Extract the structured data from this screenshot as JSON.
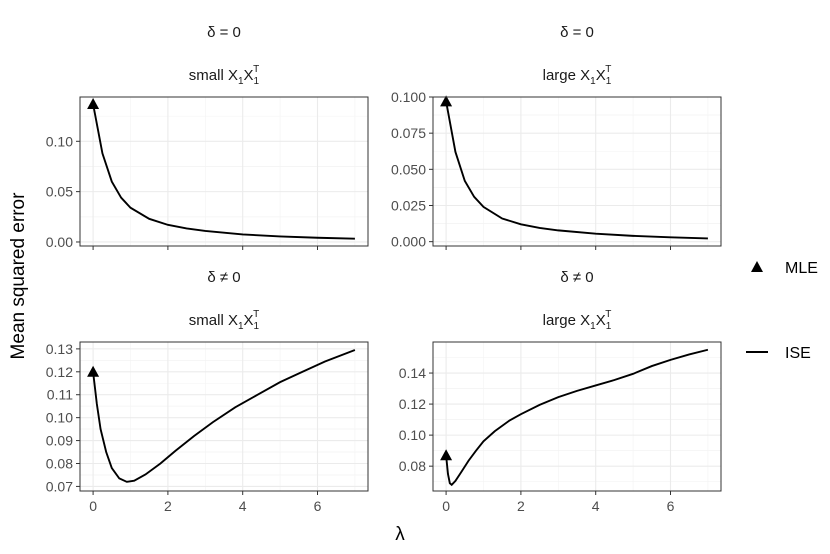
{
  "chart_data": {
    "type": "line",
    "ylabel": "Mean squared error",
    "xlabel": "λ",
    "legend": {
      "placement": "right",
      "entries": [
        {
          "label": "MLE",
          "marker": "triangle"
        },
        {
          "label": "ISE",
          "marker": "line"
        }
      ]
    },
    "grid": true,
    "panels": [
      {
        "row_label": "δ = 0",
        "subtitle_prefix": "small ",
        "xlim": [
          -0.35,
          7.35
        ],
        "ylim": [
          -0.004,
          0.144
        ],
        "x_ticks": [
          0,
          2,
          4,
          6
        ],
        "y_ticks": [
          0.0,
          0.05,
          0.1
        ],
        "y_tick_labels": [
          "0.00",
          "0.05",
          "0.10"
        ],
        "mle_point": [
          0,
          0.137
        ],
        "series": [
          {
            "name": "ISE",
            "x": [
              0,
              0.25,
              0.5,
              0.75,
              1,
              1.5,
              2,
              2.5,
              3,
              4,
              5,
              6,
              7
            ],
            "y": [
              0.137,
              0.088,
              0.06,
              0.044,
              0.034,
              0.023,
              0.017,
              0.0135,
              0.011,
              0.0075,
              0.0055,
              0.0042,
              0.0033
            ]
          }
        ]
      },
      {
        "row_label": "δ = 0",
        "subtitle_prefix": "large ",
        "xlim": [
          -0.35,
          7.35
        ],
        "ylim": [
          -0.003,
          0.1
        ],
        "x_ticks": [
          0,
          2,
          4,
          6
        ],
        "y_ticks": [
          0.0,
          0.025,
          0.05,
          0.075,
          0.1
        ],
        "y_tick_labels": [
          "0.000",
          "0.025",
          "0.050",
          "0.075",
          "0.100"
        ],
        "mle_point": [
          0,
          0.097
        ],
        "series": [
          {
            "name": "ISE",
            "x": [
              0,
              0.25,
              0.5,
              0.75,
              1,
              1.5,
              2,
              2.5,
              3,
              4,
              5,
              6,
              7
            ],
            "y": [
              0.097,
              0.062,
              0.042,
              0.031,
              0.024,
              0.016,
              0.012,
              0.0095,
              0.0078,
              0.0055,
              0.004,
              0.003,
              0.0022
            ]
          }
        ]
      },
      {
        "row_label": "δ ≠ 0",
        "subtitle_prefix": "small ",
        "xlim": [
          -0.35,
          7.35
        ],
        "ylim": [
          0.068,
          0.133
        ],
        "x_ticks": [
          0,
          2,
          4,
          6
        ],
        "x_tick_labels": [
          "0",
          "2",
          "4",
          "6"
        ],
        "y_ticks": [
          0.07,
          0.08,
          0.09,
          0.1,
          0.11,
          0.12,
          0.13
        ],
        "y_tick_labels": [
          "0.07",
          "0.08",
          "0.09",
          "0.10",
          "0.11",
          "0.12",
          "0.13"
        ],
        "mle_point": [
          0,
          0.12
        ],
        "series": [
          {
            "name": "ISE",
            "x": [
              0,
              0.1,
              0.2,
              0.35,
              0.5,
              0.7,
              0.9,
              1.1,
              1.4,
              1.8,
              2.2,
              2.7,
              3.2,
              3.8,
              4.4,
              5.0,
              5.6,
              6.2,
              7.0
            ],
            "y": [
              0.12,
              0.106,
              0.095,
              0.085,
              0.078,
              0.0735,
              0.072,
              0.0725,
              0.0752,
              0.08,
              0.0855,
              0.092,
              0.098,
              0.1045,
              0.11,
              0.1155,
              0.12,
              0.1245,
              0.1295
            ]
          }
        ]
      },
      {
        "row_label": "δ ≠ 0",
        "subtitle_prefix": "large ",
        "xlim": [
          -0.35,
          7.35
        ],
        "ylim": [
          0.064,
          0.16
        ],
        "x_ticks": [
          0,
          2,
          4,
          6
        ],
        "x_tick_labels": [
          "0",
          "2",
          "4",
          "6"
        ],
        "y_ticks": [
          0.08,
          0.1,
          0.12,
          0.14
        ],
        "y_tick_labels": [
          "0.08",
          "0.10",
          "0.12",
          "0.14"
        ],
        "mle_point": [
          0,
          0.087
        ],
        "series": [
          {
            "name": "ISE",
            "x": [
              0,
              0.05,
              0.1,
              0.15,
              0.25,
              0.4,
              0.6,
              0.8,
              1.0,
              1.3,
              1.7,
              2.0,
              2.5,
              3.0,
              3.5,
              4.0,
              4.5,
              5.0,
              5.5,
              6.0,
              6.5,
              7.0
            ],
            "y": [
              0.087,
              0.075,
              0.069,
              0.068,
              0.0705,
              0.076,
              0.0835,
              0.09,
              0.096,
              0.1025,
              0.1095,
              0.1135,
              0.1195,
              0.1245,
              0.1285,
              0.132,
              0.1355,
              0.1395,
              0.1445,
              0.1485,
              0.152,
              0.155
            ]
          }
        ]
      }
    ]
  }
}
